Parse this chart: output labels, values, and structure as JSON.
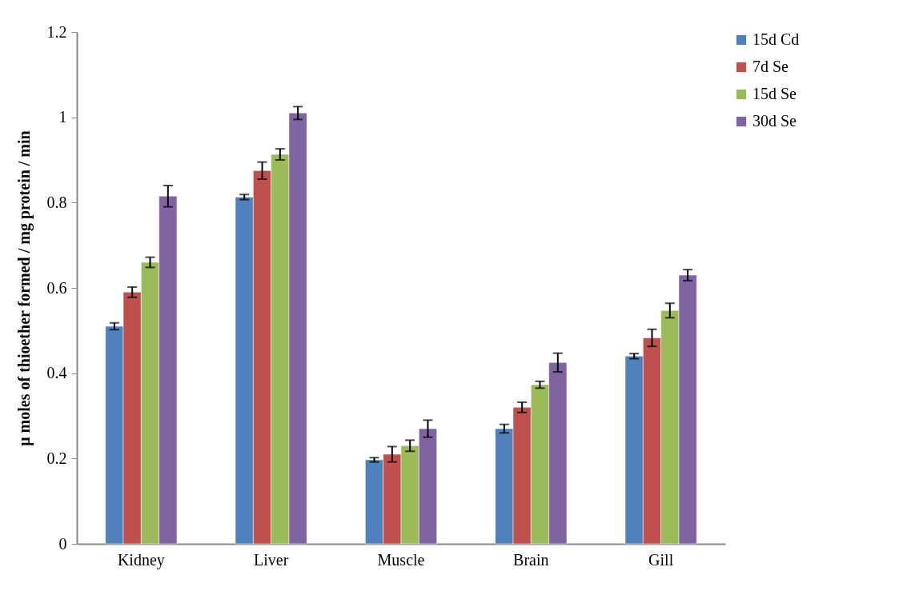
{
  "chart_data": {
    "type": "bar",
    "ylabel": "μ moles of thioether formed / mg protein / min",
    "categories": [
      "Kidney",
      "Liver",
      "Muscle",
      "Brain",
      "Gill"
    ],
    "series": [
      {
        "name": "15d Cd",
        "color": "#4f81bd",
        "values": [
          0.51,
          0.813,
          0.197,
          0.27,
          0.44
        ],
        "errors": [
          0.008,
          0.006,
          0.005,
          0.01,
          0.006
        ]
      },
      {
        "name": "7d Se",
        "color": "#c0504d",
        "values": [
          0.59,
          0.875,
          0.21,
          0.32,
          0.483
        ],
        "errors": [
          0.012,
          0.02,
          0.018,
          0.012,
          0.02
        ]
      },
      {
        "name": "15d Se",
        "color": "#9bbb59",
        "values": [
          0.66,
          0.913,
          0.23,
          0.373,
          0.547
        ],
        "errors": [
          0.012,
          0.013,
          0.013,
          0.008,
          0.017
        ]
      },
      {
        "name": "30d Se",
        "color": "#8064a2",
        "values": [
          0.815,
          1.01,
          0.27,
          0.425,
          0.63
        ],
        "errors": [
          0.025,
          0.015,
          0.02,
          0.022,
          0.013
        ]
      }
    ],
    "ylim": [
      0,
      1.2
    ],
    "yticks": [
      0,
      0.2,
      0.4,
      0.6,
      0.8,
      1,
      1.2
    ],
    "grid": false,
    "legend": "right"
  }
}
